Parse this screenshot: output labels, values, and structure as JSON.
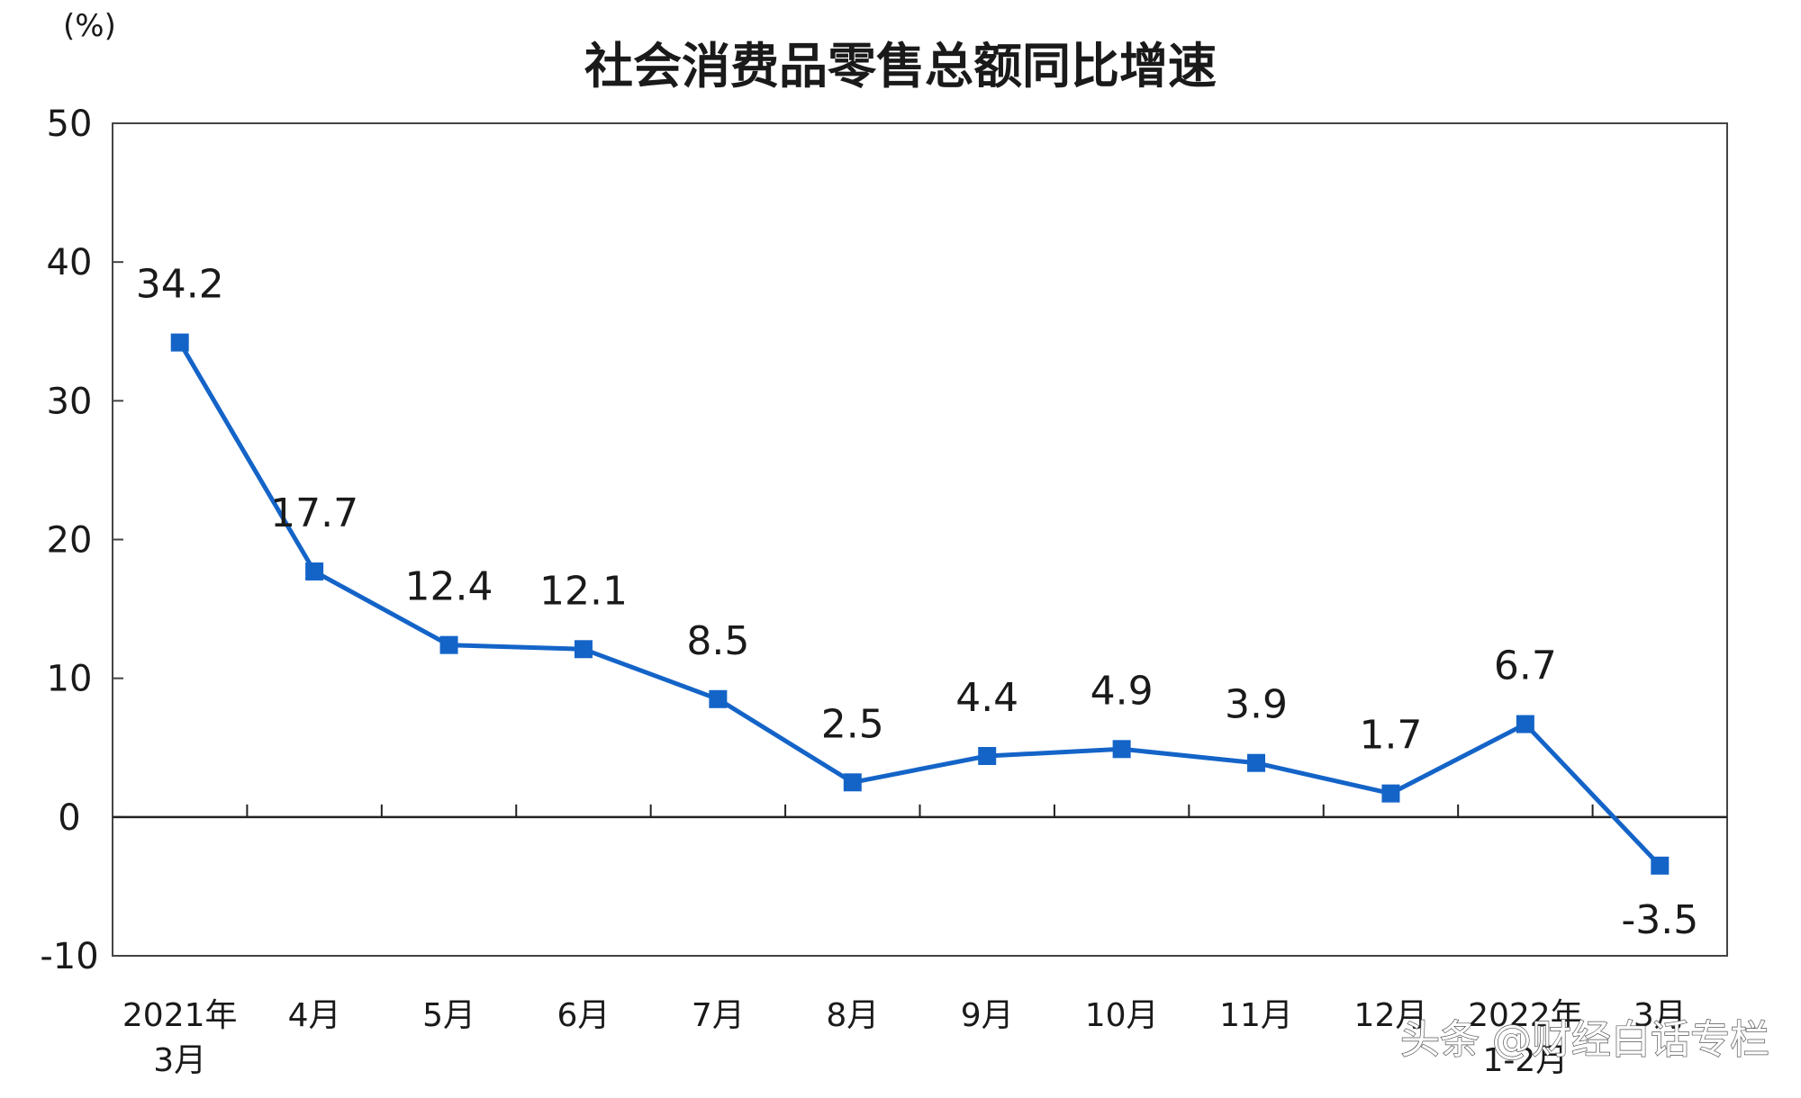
{
  "chart_data": {
    "type": "line",
    "title": "社会消费品零售总额同比增速",
    "unit_label": "(%)",
    "xlabel": "",
    "ylabel": "",
    "categories": [
      [
        "2021年",
        "3月"
      ],
      [
        "4月"
      ],
      [
        "5月"
      ],
      [
        "6月"
      ],
      [
        "7月"
      ],
      [
        "8月"
      ],
      [
        "9月"
      ],
      [
        "10月"
      ],
      [
        "11月"
      ],
      [
        "12月"
      ],
      [
        "2022年",
        "1-2月"
      ],
      [
        "3月"
      ]
    ],
    "series": [
      {
        "values": [
          34.2,
          17.7,
          12.4,
          12.1,
          8.5,
          2.5,
          4.4,
          4.9,
          3.9,
          1.7,
          6.7,
          -3.5
        ],
        "data_labels": [
          "34.2",
          "17.7",
          "12.4",
          "12.1",
          "8.5",
          "2.5",
          "4.4",
          "4.9",
          "3.9",
          "1.7",
          "6.7",
          "-3.5"
        ],
        "color": "#1464c8"
      }
    ],
    "ylim": [
      -10,
      50
    ],
    "yticks": [
      -10,
      0,
      10,
      20,
      30,
      40,
      50
    ],
    "ytick_labels": [
      "-10",
      "0",
      "10",
      "20",
      "30",
      "40",
      "50"
    ],
    "grid": false,
    "legend": "none"
  },
  "watermark": "头条 @财经白话专栏"
}
